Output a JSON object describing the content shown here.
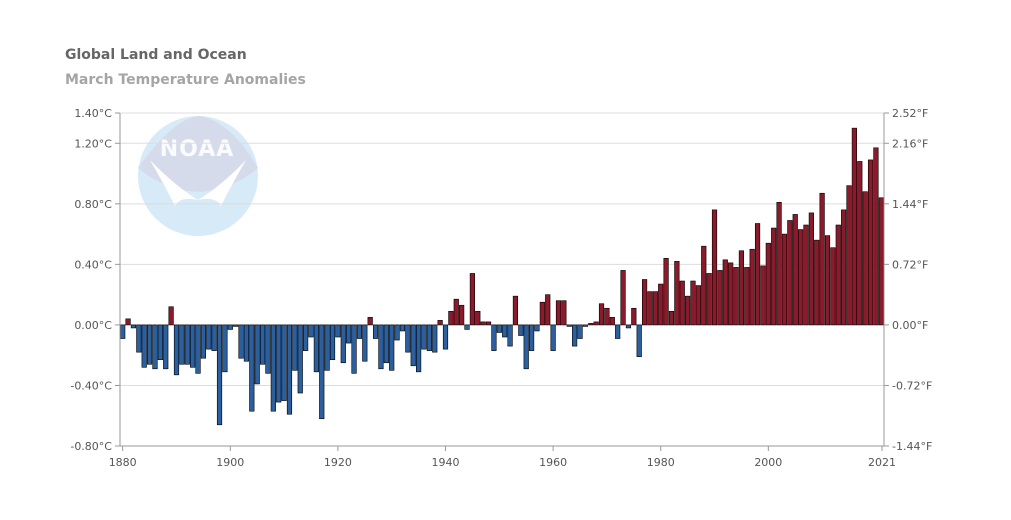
{
  "chart_data": {
    "type": "bar",
    "title": "Global Land and Ocean",
    "subtitle": "March Temperature Anomalies",
    "xlabel": "",
    "ylabel": "",
    "x_range": [
      1880,
      2021
    ],
    "x_ticks": [
      "1880",
      "1900",
      "1920",
      "1940",
      "1960",
      "1980",
      "2000",
      "2021"
    ],
    "ylim": [
      -0.8,
      1.4
    ],
    "y_ticks_left": [
      "-0.80°C",
      "-0.40°C",
      "0.00°C",
      "0.40°C",
      "0.80°C",
      "1.20°C",
      "1.40°C"
    ],
    "y_ticks_left_values": [
      -0.8,
      -0.4,
      0.0,
      0.4,
      0.8,
      1.2,
      1.4
    ],
    "y_ticks_right": [
      "-1.44°F",
      "-0.72°F",
      "0.00°F",
      "0.72°F",
      "1.44°F",
      "2.16°F",
      "2.52°F"
    ],
    "grid": true,
    "logo": "NOAA",
    "colors": {
      "positive": "#8b1a2b",
      "negative": "#2b5f9e",
      "bar_stroke": "#000000",
      "grid": "#dddddd"
    },
    "years": [
      1880,
      1881,
      1882,
      1883,
      1884,
      1885,
      1886,
      1887,
      1888,
      1889,
      1890,
      1891,
      1892,
      1893,
      1894,
      1895,
      1896,
      1897,
      1898,
      1899,
      1900,
      1901,
      1902,
      1903,
      1904,
      1905,
      1906,
      1907,
      1908,
      1909,
      1910,
      1911,
      1912,
      1913,
      1914,
      1915,
      1916,
      1917,
      1918,
      1919,
      1920,
      1921,
      1922,
      1923,
      1924,
      1925,
      1926,
      1927,
      1928,
      1929,
      1930,
      1931,
      1932,
      1933,
      1934,
      1935,
      1936,
      1937,
      1938,
      1939,
      1940,
      1941,
      1942,
      1943,
      1944,
      1945,
      1946,
      1947,
      1948,
      1949,
      1950,
      1951,
      1952,
      1953,
      1954,
      1955,
      1956,
      1957,
      1958,
      1959,
      1960,
      1961,
      1962,
      1963,
      1964,
      1965,
      1966,
      1967,
      1968,
      1969,
      1970,
      1971,
      1972,
      1973,
      1974,
      1975,
      1976,
      1977,
      1978,
      1979,
      1980,
      1981,
      1982,
      1983,
      1984,
      1985,
      1986,
      1987,
      1988,
      1989,
      1990,
      1991,
      1992,
      1993,
      1994,
      1995,
      1996,
      1997,
      1998,
      1999,
      2000,
      2001,
      2002,
      2003,
      2004,
      2005,
      2006,
      2007,
      2008,
      2009,
      2010,
      2011,
      2012,
      2013,
      2014,
      2015,
      2016,
      2017,
      2018,
      2019,
      2020,
      2021
    ],
    "values": [
      -0.09,
      0.04,
      -0.02,
      -0.18,
      -0.28,
      -0.26,
      -0.29,
      -0.23,
      -0.29,
      0.12,
      -0.33,
      -0.26,
      -0.26,
      -0.28,
      -0.32,
      -0.22,
      -0.16,
      -0.17,
      -0.66,
      -0.31,
      -0.03,
      -0.01,
      -0.22,
      -0.24,
      -0.57,
      -0.39,
      -0.26,
      -0.32,
      -0.57,
      -0.51,
      -0.5,
      -0.59,
      -0.3,
      -0.45,
      -0.17,
      -0.08,
      -0.31,
      -0.62,
      -0.3,
      -0.23,
      -0.08,
      -0.25,
      -0.12,
      -0.32,
      -0.09,
      -0.24,
      0.05,
      -0.09,
      -0.29,
      -0.25,
      -0.3,
      -0.1,
      -0.04,
      -0.18,
      -0.27,
      -0.31,
      -0.16,
      -0.17,
      -0.18,
      0.03,
      -0.16,
      0.09,
      0.17,
      0.13,
      -0.03,
      0.34,
      0.09,
      0.02,
      0.02,
      -0.17,
      -0.05,
      -0.08,
      -0.14,
      0.19,
      -0.07,
      -0.29,
      -0.17,
      -0.04,
      0.15,
      0.2,
      -0.17,
      0.16,
      0.16,
      -0.01,
      -0.14,
      -0.09,
      -0.01,
      0.01,
      0.02,
      0.14,
      0.11,
      0.05,
      -0.09,
      0.36,
      -0.02,
      0.11,
      -0.21,
      0.3,
      0.22,
      0.22,
      0.27,
      0.44,
      0.09,
      0.42,
      0.29,
      0.19,
      0.29,
      0.26,
      0.52,
      0.34,
      0.76,
      0.36,
      0.43,
      0.41,
      0.38,
      0.49,
      0.38,
      0.5,
      0.67,
      0.39,
      0.54,
      0.64,
      0.81,
      0.6,
      0.69,
      0.73,
      0.63,
      0.66,
      0.74,
      0.56,
      0.87,
      0.59,
      0.51,
      0.66,
      0.76,
      0.92,
      1.3,
      1.08,
      0.88,
      1.09,
      1.17,
      0.84
    ]
  }
}
